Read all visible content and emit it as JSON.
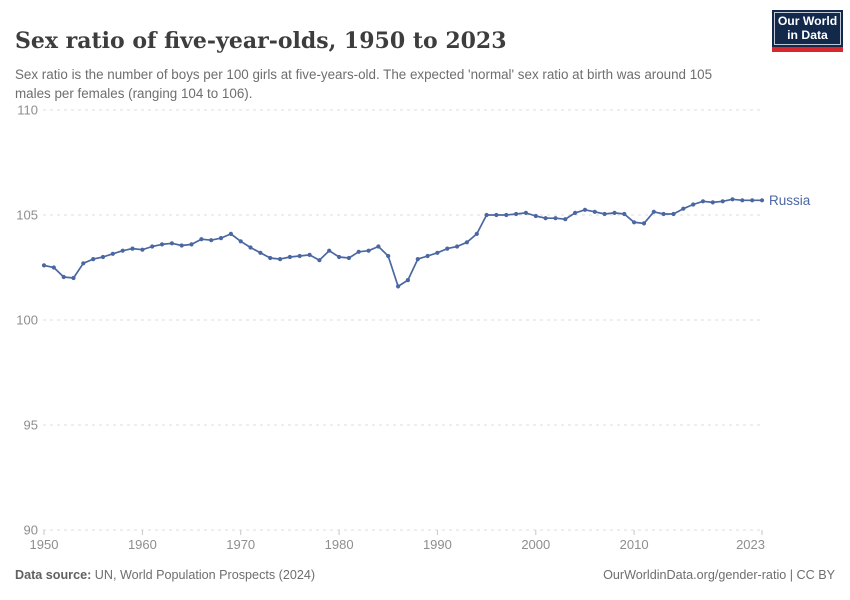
{
  "header": {
    "title": "Sex ratio of five-year-olds, 1950 to 2023",
    "subtitle": "Sex ratio is the number of boys per 100 girls at five-years-old. The expected 'normal' sex ratio at birth was around 105 males per females (ranging 104 to 106)."
  },
  "logo": {
    "line1": "Our World",
    "line2": "in Data",
    "bg_color": "#12294b",
    "accent_color": "#d7282f"
  },
  "chart_data": {
    "type": "line",
    "title": "Sex ratio of five-year-olds, 1950 to 2023",
    "xlabel": "",
    "ylabel": "",
    "ylim": [
      90,
      110
    ],
    "yticks": [
      90,
      95,
      100,
      105,
      110
    ],
    "xticks": [
      1950,
      1960,
      1970,
      1980,
      1990,
      2000,
      2010,
      2023
    ],
    "grid": "horizontal-dashed",
    "legend": "end-of-line-label",
    "x": [
      1950,
      1951,
      1952,
      1953,
      1954,
      1955,
      1956,
      1957,
      1958,
      1959,
      1960,
      1961,
      1962,
      1963,
      1964,
      1965,
      1966,
      1967,
      1968,
      1969,
      1970,
      1971,
      1972,
      1973,
      1974,
      1975,
      1976,
      1977,
      1978,
      1979,
      1980,
      1981,
      1982,
      1983,
      1984,
      1985,
      1986,
      1987,
      1988,
      1989,
      1990,
      1991,
      1992,
      1993,
      1994,
      1995,
      1996,
      1997,
      1998,
      1999,
      2000,
      2001,
      2002,
      2003,
      2004,
      2005,
      2006,
      2007,
      2008,
      2009,
      2010,
      2011,
      2012,
      2013,
      2014,
      2015,
      2016,
      2017,
      2018,
      2019,
      2020,
      2021,
      2022,
      2023
    ],
    "series": [
      {
        "name": "Russia",
        "color": "#4a67a2",
        "values": [
          102.6,
          102.5,
          102.05,
          102.0,
          102.7,
          102.9,
          103.0,
          103.15,
          103.3,
          103.4,
          103.35,
          103.5,
          103.6,
          103.65,
          103.55,
          103.6,
          103.85,
          103.8,
          103.9,
          104.1,
          103.75,
          103.45,
          103.2,
          102.95,
          102.9,
          103.0,
          103.05,
          103.1,
          102.85,
          103.3,
          103.0,
          102.95,
          103.25,
          103.3,
          103.5,
          103.05,
          101.6,
          101.9,
          102.9,
          103.05,
          103.2,
          103.4,
          103.5,
          103.7,
          104.1,
          105.0,
          105.0,
          105.0,
          105.05,
          105.1,
          104.95,
          104.85,
          104.85,
          104.8,
          105.1,
          105.25,
          105.15,
          105.05,
          105.1,
          105.05,
          104.65,
          104.6,
          105.15,
          105.05,
          105.05,
          105.3,
          105.5,
          105.65,
          105.6,
          105.65,
          105.75,
          105.7,
          105.7,
          105.7
        ]
      }
    ]
  },
  "footer": {
    "source_label": "Data source:",
    "source_text": "UN, World Population Prospects (2024)",
    "credit": "OurWorldinData.org/gender-ratio | CC BY"
  }
}
